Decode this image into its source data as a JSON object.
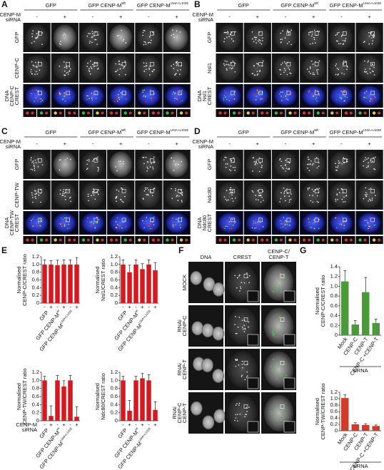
{
  "panels": [
    {
      "label": "A",
      "headers": [
        {
          "text": "GFP"
        },
        {
          "text": "GFP CENP-M",
          "sup": "wt"
        },
        {
          "text": "GFP CENP-M",
          "sup": "L94A+L102E"
        }
      ],
      "condition": [
        "CENP-M",
        "siRNA"
      ],
      "signs": [
        "-",
        "+",
        "-",
        "+",
        "-",
        "+"
      ],
      "rows": [
        [
          {
            "text": "GFP"
          }
        ],
        [
          {
            "text": "CENP-C"
          }
        ],
        [
          {
            "text": "DNA",
            "color": "#2b3cff"
          },
          {
            "text": "CENP-C",
            "color": "#25a844"
          },
          {
            "text": "CREST",
            "color": "#e02020"
          }
        ]
      ]
    },
    {
      "label": "B",
      "headers": [
        {
          "text": "GFP"
        },
        {
          "text": "GFP CENP-M",
          "sup": "wt"
        },
        {
          "text": "GFP CENP-M",
          "sup": "L94A+L102E"
        }
      ],
      "condition": [
        "CENP-M",
        "siRNA"
      ],
      "signs": [
        "-",
        "+",
        "-",
        "+",
        "-",
        "+"
      ],
      "rows": [
        [
          {
            "text": "GFP"
          }
        ],
        [
          {
            "text": "Nsl1"
          }
        ],
        [
          {
            "text": "DNA",
            "color": "#2b3cff"
          },
          {
            "text": "Nsl1",
            "color": "#25a844"
          },
          {
            "text": "CREST",
            "color": "#e02020"
          }
        ]
      ]
    },
    {
      "label": "C",
      "headers": [
        {
          "text": "GFP"
        },
        {
          "text": "GFP CENP-M",
          "sup": "wt"
        },
        {
          "text": "GFP CENP-M",
          "sup": "L94A+L102E"
        }
      ],
      "condition": [
        "CENP-M",
        "siRNA"
      ],
      "signs": [
        "-",
        "+",
        "-",
        "+",
        "-",
        "+"
      ],
      "rows": [
        [
          {
            "text": "GFP"
          }
        ],
        [
          {
            "text": "CENP-TW"
          }
        ],
        [
          {
            "text": "DNA",
            "color": "#2b3cff"
          },
          {
            "text": "CENP-TW",
            "color": "#25a844"
          },
          {
            "text": "CREST",
            "color": "#e02020"
          }
        ]
      ]
    },
    {
      "label": "D",
      "headers": [
        {
          "text": "GFP"
        },
        {
          "text": "GFP CENP-M",
          "sup": "wt"
        },
        {
          "text": "GFP CENP-M",
          "sup": "L94A+L102E"
        }
      ],
      "condition": [
        "CENP-M",
        "siRNA"
      ],
      "signs": [
        "-",
        "+",
        "-",
        "+",
        "-",
        "+"
      ],
      "rows": [
        [
          {
            "text": "GFP"
          }
        ],
        [
          {
            "text": "Ndc80"
          }
        ],
        [
          {
            "text": "DNA",
            "color": "#2b3cff"
          },
          {
            "text": "Ndc80",
            "color": "#25a844"
          },
          {
            "text": "CREST",
            "color": "#e02020"
          }
        ]
      ]
    }
  ],
  "panel_e": {
    "label": "E",
    "charts": [
      {
        "type": "bar",
        "ylabel": [
          "Normalised",
          "CENP-C/CREST ratio"
        ],
        "ylim": [
          0,
          1.2
        ],
        "yticks": [
          0,
          0.2,
          0.4,
          0.6,
          0.8,
          {
            "value": 1,
            "label": "1.0"
          },
          1.2
        ],
        "values": [
          1,
          1,
          0.98,
          1,
          1,
          1
        ],
        "errors": [
          0.12,
          0.1,
          0.13,
          0.12,
          0.12,
          0.18
        ],
        "signs": [
          "-",
          "+",
          "-",
          "+",
          "-",
          "+"
        ],
        "groups": [
          {
            "text": "GFP"
          },
          {
            "text": "GFP CENP-M",
            "sup": "wt"
          },
          {
            "text": "GFP CENP-M",
            "sup": "L94A+L102E"
          }
        ],
        "color": "#d8181e"
      },
      {
        "type": "bar",
        "ylabel": [
          "Normalised",
          "Nsl1/CREST ratio"
        ],
        "ylim": [
          0,
          1.2
        ],
        "yticks": [
          0,
          0.2,
          0.4,
          0.6,
          0.8,
          {
            "value": 1,
            "label": "1.0"
          },
          1.2
        ],
        "values": [
          1,
          0.8,
          1,
          0.88,
          1,
          0.85
        ],
        "errors": [
          0.12,
          0.18,
          0.12,
          0.14,
          0.12,
          0.2
        ],
        "signs": [
          "-",
          "+",
          "-",
          "+",
          "-",
          "+"
        ],
        "groups": [
          {
            "text": "GFP"
          },
          {
            "text": "GFP CENP-M",
            "sup": "wt"
          },
          {
            "text": "GFP CENP-M",
            "sup": "L94A+L102E"
          }
        ],
        "color": "#d8181e"
      },
      {
        "type": "bar",
        "ylabel": [
          "Normalised",
          "CENP-TW/CREST ratio"
        ],
        "ylim": [
          0,
          1.2
        ],
        "yticks": [
          0,
          0.2,
          0.4,
          0.6,
          0.8,
          {
            "value": 1,
            "label": "1.0"
          },
          1.2
        ],
        "values": [
          1,
          0.12,
          1,
          0.85,
          1,
          0.1
        ],
        "errors": [
          0.1,
          0.25,
          0.12,
          0.14,
          0.12,
          0.25
        ],
        "signs": [
          "-",
          "+",
          "-",
          "+",
          "-",
          "+"
        ],
        "groups": [
          {
            "text": "GFP"
          },
          {
            "text": "GFP CENP-M",
            "sup": "wt"
          },
          {
            "text": "GFP CENP-M",
            "sup": "L94A+L102E"
          }
        ],
        "condition": [
          "CENP-M",
          "siRNA"
        ],
        "color": "#d8181e"
      },
      {
        "type": "bar",
        "ylabel": [
          "Normalised",
          "Ndc80/CREST ratio"
        ],
        "ylim": [
          0,
          1.2
        ],
        "yticks": [
          0,
          0.2,
          0.4,
          0.6,
          0.8,
          {
            "value": 1,
            "label": "1.0"
          },
          1.2
        ],
        "values": [
          1,
          0.25,
          1,
          1.05,
          1,
          0.27
        ],
        "errors": [
          0.1,
          0.25,
          0.1,
          0.12,
          0.14,
          0.2
        ],
        "signs": [
          "-",
          "+",
          "-",
          "+",
          "-",
          "+"
        ],
        "groups": [
          {
            "text": "GFP"
          },
          {
            "text": "GFP CENP-M",
            "sup": "wt"
          },
          {
            "text": "GFP CENP-M",
            "sup": "L94A+L102E"
          }
        ],
        "color": "#d8181e"
      }
    ]
  },
  "panel_f": {
    "label": "F",
    "columns": [
      [
        {
          "text": "DNA"
        }
      ],
      [
        {
          "text": "CREST"
        }
      ],
      [
        {
          "text": "CENP-C/",
          "color": "#25a844"
        },
        {
          "text": "CENP-T",
          "color": "#e02020"
        }
      ]
    ],
    "rows": [
      [
        "MOCK"
      ],
      [
        "RNAi",
        "CENP-C"
      ],
      [
        "RNAi",
        "CENP-T"
      ],
      [
        "RNAi",
        "CENP-C",
        "CENP-T"
      ]
    ]
  },
  "panel_g": {
    "label": "G",
    "charts": [
      {
        "type": "bar",
        "ylabel": [
          "Normalised",
          "CENP-C/CREST ratio"
        ],
        "ylim": [
          0,
          1.4
        ],
        "yticks": [
          0,
          0.2,
          0.4,
          0.6,
          0.8,
          {
            "value": 1,
            "label": "1.0"
          },
          1.2,
          1.4
        ],
        "values": [
          1.1,
          0.22,
          0.88,
          0.25
        ],
        "errors": [
          0.22,
          0.08,
          0.3,
          0.08
        ],
        "categories": [
          "Mock",
          "CENP-C",
          "CENP-T",
          "CENP-C +CENP-T"
        ],
        "xlabel": "siRNA",
        "color": "#4a9a3a"
      },
      {
        "type": "bar",
        "ylabel": [
          "Normalised",
          "CENP-TW/CREST ratio"
        ],
        "ylim": [
          0,
          1.2
        ],
        "yticks": [
          0,
          0.2,
          0.4,
          0.6,
          0.8,
          {
            "value": 1,
            "label": "1.0"
          },
          1.2
        ],
        "values": [
          1.02,
          0.2,
          0.18,
          0.15
        ],
        "errors": [
          0.1,
          0.05,
          0.04,
          0.03
        ],
        "categories": [
          "Mock",
          "CENP-C",
          "CENP-T",
          "CENP-C +CENP-T"
        ],
        "xlabel": "siRNA",
        "color": "#d33a2a"
      }
    ]
  }
}
